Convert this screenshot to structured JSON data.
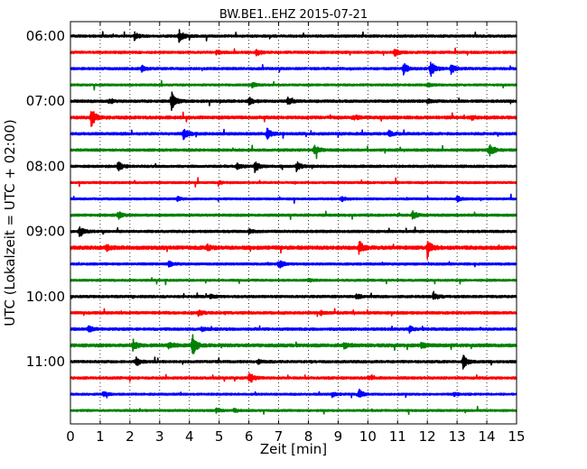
{
  "chart_data": {
    "type": "line",
    "title": "BW.BE1..EHZ 2015-07-21",
    "xlabel": "Zeit  [min]",
    "ylabel": "UTC (Lokalzeit = UTC + 02:00)",
    "xlim": [
      0,
      15
    ],
    "x_ticks": [
      0,
      1,
      2,
      3,
      4,
      5,
      6,
      7,
      8,
      9,
      10,
      11,
      12,
      13,
      14,
      15
    ],
    "x_tick_labels": [
      "0",
      "1",
      "2",
      "3",
      "4",
      "5",
      "6",
      "7",
      "8",
      "9",
      "10",
      "11",
      "12",
      "13",
      "14",
      "15"
    ],
    "y_tick_labels": [
      "06:00",
      "07:00",
      "08:00",
      "09:00",
      "10:00",
      "11:00"
    ],
    "y_tick_trace_index": [
      0,
      4,
      8,
      12,
      16,
      20
    ],
    "trace_minutes": 15,
    "grid": "vertical dotted",
    "colors": {
      "cycle": [
        "#000000",
        "#ff0000",
        "#0000ff",
        "#008000"
      ]
    },
    "series": [
      {
        "start": "06:00",
        "color": "#000000",
        "noise": 1.2,
        "events": [
          {
            "t": 2.15,
            "a": 4
          },
          {
            "t": 3.65,
            "a": 8
          }
        ]
      },
      {
        "start": "06:15",
        "color": "#ff0000",
        "noise": 1.2,
        "events": [
          {
            "t": 6.25,
            "a": 4
          },
          {
            "t": 10.9,
            "a": 4
          },
          {
            "t": 4.9,
            "a": 2
          }
        ]
      },
      {
        "start": "06:30",
        "color": "#0000ff",
        "noise": 1.2,
        "events": [
          {
            "t": 2.4,
            "a": 3
          },
          {
            "t": 11.2,
            "a": 6
          },
          {
            "t": 12.1,
            "a": 9
          },
          {
            "t": 12.8,
            "a": 5
          }
        ]
      },
      {
        "start": "06:45",
        "color": "#008000",
        "noise": 1.0,
        "events": [
          {
            "t": 6.1,
            "a": 3
          },
          {
            "t": 12.0,
            "a": 2
          }
        ]
      },
      {
        "start": "07:00",
        "color": "#000000",
        "noise": 1.3,
        "events": [
          {
            "t": 1.3,
            "a": 3
          },
          {
            "t": 3.4,
            "a": 10
          },
          {
            "t": 6.0,
            "a": 4
          },
          {
            "t": 7.3,
            "a": 4
          },
          {
            "t": 12.0,
            "a": 2
          }
        ]
      },
      {
        "start": "07:15",
        "color": "#ff0000",
        "noise": 1.5,
        "events": [
          {
            "t": 0.7,
            "a": 10
          },
          {
            "t": 9.5,
            "a": 3
          },
          {
            "t": 13.5,
            "a": 2
          }
        ]
      },
      {
        "start": "07:30",
        "color": "#0000ff",
        "noise": 1.3,
        "events": [
          {
            "t": 3.8,
            "a": 8
          },
          {
            "t": 6.6,
            "a": 6
          },
          {
            "t": 10.7,
            "a": 3
          }
        ]
      },
      {
        "start": "07:45",
        "color": "#008000",
        "noise": 1.2,
        "events": [
          {
            "t": 8.2,
            "a": 7
          },
          {
            "t": 14.1,
            "a": 8
          }
        ]
      },
      {
        "start": "08:00",
        "color": "#000000",
        "noise": 1.2,
        "events": [
          {
            "t": 1.6,
            "a": 5
          },
          {
            "t": 5.6,
            "a": 3
          },
          {
            "t": 6.2,
            "a": 6
          },
          {
            "t": 7.6,
            "a": 5
          }
        ]
      },
      {
        "start": "08:15",
        "color": "#ff0000",
        "noise": 1.0,
        "events": [
          {
            "t": 5.0,
            "a": 1.5
          }
        ]
      },
      {
        "start": "08:30",
        "color": "#0000ff",
        "noise": 1.0,
        "events": [
          {
            "t": 3.6,
            "a": 2
          },
          {
            "t": 9.1,
            "a": 3
          },
          {
            "t": 13.0,
            "a": 3
          }
        ]
      },
      {
        "start": "08:45",
        "color": "#008000",
        "noise": 1.2,
        "events": [
          {
            "t": 1.6,
            "a": 4
          },
          {
            "t": 11.5,
            "a": 5
          }
        ]
      },
      {
        "start": "09:00",
        "color": "#000000",
        "noise": 1.2,
        "events": [
          {
            "t": 0.3,
            "a": 5
          },
          {
            "t": 6.0,
            "a": 2
          }
        ]
      },
      {
        "start": "09:15",
        "color": "#ff0000",
        "noise": 1.8,
        "events": [
          {
            "t": 1.2,
            "a": 3
          },
          {
            "t": 4.6,
            "a": 3
          },
          {
            "t": 9.7,
            "a": 7
          },
          {
            "t": 12.0,
            "a": 11
          }
        ]
      },
      {
        "start": "09:30",
        "color": "#0000ff",
        "noise": 1.1,
        "events": [
          {
            "t": 3.3,
            "a": 3
          },
          {
            "t": 7.0,
            "a": 5
          }
        ]
      },
      {
        "start": "09:45",
        "color": "#008000",
        "noise": 1.0,
        "events": [
          {
            "t": 8.0,
            "a": 1.5
          }
        ]
      },
      {
        "start": "10:00",
        "color": "#000000",
        "noise": 1.2,
        "events": [
          {
            "t": 4.7,
            "a": 2
          },
          {
            "t": 9.6,
            "a": 3
          },
          {
            "t": 12.2,
            "a": 5
          }
        ]
      },
      {
        "start": "10:15",
        "color": "#ff0000",
        "noise": 1.3,
        "events": [
          {
            "t": 4.3,
            "a": 3
          },
          {
            "t": 8.4,
            "a": 2
          }
        ]
      },
      {
        "start": "10:30",
        "color": "#0000ff",
        "noise": 1.3,
        "events": [
          {
            "t": 0.6,
            "a": 4
          },
          {
            "t": 4.4,
            "a": 2
          },
          {
            "t": 11.4,
            "a": 3
          }
        ]
      },
      {
        "start": "10:45",
        "color": "#008000",
        "noise": 1.6,
        "events": [
          {
            "t": 2.1,
            "a": 6
          },
          {
            "t": 3.3,
            "a": 5
          },
          {
            "t": 4.1,
            "a": 12
          },
          {
            "t": 9.2,
            "a": 3
          },
          {
            "t": 11.8,
            "a": 3
          }
        ]
      },
      {
        "start": "11:00",
        "color": "#000000",
        "noise": 1.2,
        "events": [
          {
            "t": 2.2,
            "a": 5
          },
          {
            "t": 6.3,
            "a": 2
          },
          {
            "t": 13.2,
            "a": 7
          }
        ]
      },
      {
        "start": "11:15",
        "color": "#ff0000",
        "noise": 1.2,
        "events": [
          {
            "t": 6.0,
            "a": 7
          },
          {
            "t": 10.0,
            "a": 2
          }
        ]
      },
      {
        "start": "11:30",
        "color": "#0000ff",
        "noise": 1.0,
        "events": [
          {
            "t": 1.1,
            "a": 3
          },
          {
            "t": 8.8,
            "a": 3
          },
          {
            "t": 9.7,
            "a": 5
          },
          {
            "t": 12.9,
            "a": 2
          }
        ]
      },
      {
        "start": "11:45",
        "color": "#008000",
        "noise": 1.0,
        "events": [
          {
            "t": 4.9,
            "a": 2
          },
          {
            "t": 5.5,
            "a": 2
          }
        ]
      }
    ]
  }
}
